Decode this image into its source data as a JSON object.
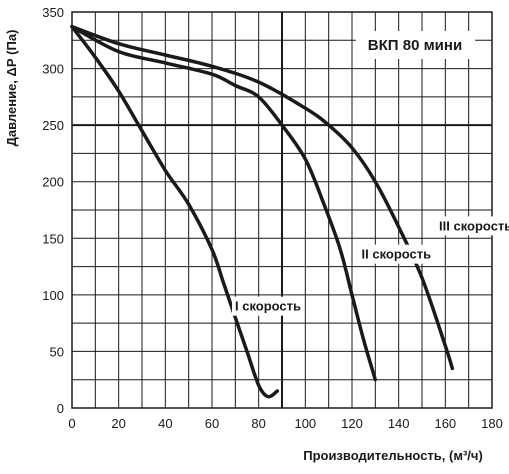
{
  "chart_data": {
    "type": "line",
    "title": "ВКП 80 мини",
    "xlabel": "Производительность, (м³/ч)",
    "ylabel": "Давление, ΔР (Па)",
    "xlim": [
      0,
      180
    ],
    "ylim": [
      0,
      350
    ],
    "x_ticks": [
      "0",
      "20",
      "40",
      "60",
      "80",
      "100",
      "120",
      "140",
      "160",
      "180"
    ],
    "y_ticks": [
      "0",
      "50",
      "100",
      "150",
      "200",
      "250",
      "300",
      "350"
    ],
    "grid": true,
    "series": [
      {
        "name": "I скорость",
        "x": [
          0,
          10,
          20,
          30,
          40,
          50,
          60,
          65,
          70,
          75,
          80,
          84,
          88
        ],
        "y": [
          337,
          310,
          280,
          245,
          210,
          180,
          140,
          110,
          80,
          50,
          20,
          10,
          15
        ]
      },
      {
        "name": "II скорость",
        "x": [
          0,
          20,
          40,
          60,
          70,
          80,
          90,
          100,
          108,
          115,
          120,
          125,
          130
        ],
        "y": [
          337,
          315,
          305,
          295,
          285,
          275,
          250,
          220,
          180,
          140,
          100,
          60,
          25
        ]
      },
      {
        "name": "III скорость",
        "x": [
          0,
          20,
          40,
          60,
          80,
          100,
          110,
          120,
          130,
          140,
          150,
          160,
          163
        ],
        "y": [
          337,
          322,
          312,
          302,
          288,
          265,
          250,
          230,
          200,
          160,
          115,
          55,
          35
        ]
      }
    ],
    "label_map": {
      "I скорость": [
        84,
        86
      ],
      "II скорость": [
        139,
        132
      ],
      "III скорость": [
        173,
        157
      ]
    }
  }
}
